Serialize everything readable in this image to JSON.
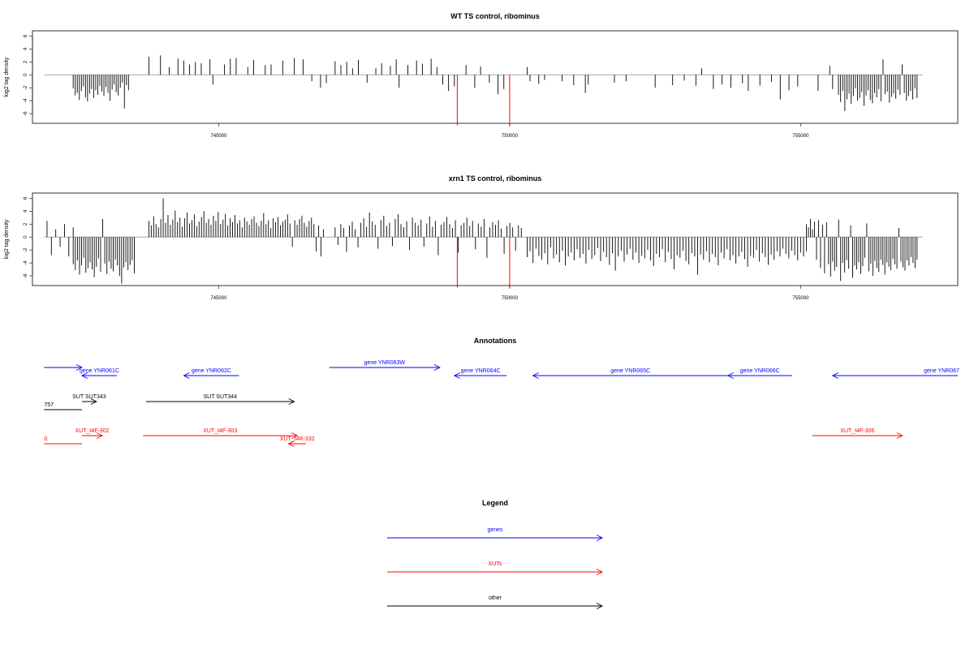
{
  "colors": {
    "genes": "#0000ff",
    "XUTs": "#ff0000",
    "other": "#000000",
    "signal": "#000000",
    "baseline": "#999999",
    "marker": "#ff0000"
  },
  "chart_data": [
    {
      "type": "bar",
      "title": "WT TS control, ribominus",
      "ylabel": "log2 tag density",
      "xlim": [
        741800,
        757700
      ],
      "ylim": [
        -7.5,
        6.8
      ],
      "yticks": [
        -6,
        -4,
        -2,
        0,
        2,
        4,
        6
      ],
      "xticks": [
        745000,
        750000,
        755000
      ],
      "xtick_labels": [
        "745000",
        "750000",
        "755000"
      ],
      "baseline_range": [
        742000,
        757100
      ],
      "markers": [
        {
          "x": 749100,
          "y": -7.8
        },
        {
          "x": 750000,
          "y": -7.8
        }
      ],
      "dense_regions": [
        {
          "from": 742500,
          "to": 743450,
          "values": [
            -2.1,
            -3.2,
            -2.8,
            -3.9,
            -2.5,
            -1.8,
            -3.5,
            -4.1,
            -2.9,
            -2.2,
            -3.6,
            -2.4,
            -3.1,
            -1.7,
            -2.6,
            -3.3,
            -1.9,
            -2.8,
            -4.0,
            -2.3,
            -1.5,
            -2.7,
            -3.2,
            -2.0,
            -1.2,
            -5.2,
            -1.6,
            -2.4
          ]
        },
        {
          "from": 755650,
          "to": 757000,
          "values": [
            -3.1,
            -4.2,
            -2.5,
            -5.6,
            -3.8,
            -2.9,
            -4.5,
            -3.3,
            -2.1,
            -4.0,
            -3.6,
            -2.7,
            -4.8,
            -3.2,
            -2.4,
            -3.9,
            -4.4,
            -2.8,
            -3.5,
            -2.2,
            -4.1,
            2.4,
            -3.0,
            -2.6,
            -4.3,
            -3.4,
            -2.9,
            -3.7,
            -2.3,
            -3.1,
            1.6,
            -2.8,
            -4.0,
            -3.3,
            -2.5,
            -3.8,
            -2.1,
            -3.6
          ]
        }
      ],
      "bars": [
        {
          "x": 743800,
          "y": 2.8
        },
        {
          "x": 744000,
          "y": 3.0
        },
        {
          "x": 744150,
          "y": 1.2
        },
        {
          "x": 744300,
          "y": 2.5
        },
        {
          "x": 744400,
          "y": 2.2
        },
        {
          "x": 744500,
          "y": 1.6
        },
        {
          "x": 744600,
          "y": 2.0
        },
        {
          "x": 744700,
          "y": 1.8
        },
        {
          "x": 744850,
          "y": 2.4
        },
        {
          "x": 744900,
          "y": -1.5
        },
        {
          "x": 745100,
          "y": 1.6
        },
        {
          "x": 745200,
          "y": 2.5
        },
        {
          "x": 745300,
          "y": 2.6
        },
        {
          "x": 745500,
          "y": 1.2
        },
        {
          "x": 745600,
          "y": 2.3
        },
        {
          "x": 745800,
          "y": 1.5
        },
        {
          "x": 745900,
          "y": 1.6
        },
        {
          "x": 746100,
          "y": 2.2
        },
        {
          "x": 746300,
          "y": 2.6
        },
        {
          "x": 746450,
          "y": 2.4
        },
        {
          "x": 746600,
          "y": -1.0
        },
        {
          "x": 746750,
          "y": -2.0
        },
        {
          "x": 746850,
          "y": -1.3
        },
        {
          "x": 747000,
          "y": 2.1
        },
        {
          "x": 747100,
          "y": 1.5
        },
        {
          "x": 747200,
          "y": 2.0
        },
        {
          "x": 747300,
          "y": 1.0
        },
        {
          "x": 747400,
          "y": 2.3
        },
        {
          "x": 747550,
          "y": -1.2
        },
        {
          "x": 747700,
          "y": 1.0
        },
        {
          "x": 747800,
          "y": 1.8
        },
        {
          "x": 747950,
          "y": 1.4
        },
        {
          "x": 748050,
          "y": 2.4
        },
        {
          "x": 748100,
          "y": -2.0
        },
        {
          "x": 748250,
          "y": 1.5
        },
        {
          "x": 748400,
          "y": 2.2
        },
        {
          "x": 748500,
          "y": 1.7
        },
        {
          "x": 748650,
          "y": 2.5
        },
        {
          "x": 748750,
          "y": 1.2
        },
        {
          "x": 748850,
          "y": -1.5
        },
        {
          "x": 748950,
          "y": -2.5
        },
        {
          "x": 749050,
          "y": -1.8
        },
        {
          "x": 749250,
          "y": 1.5
        },
        {
          "x": 749400,
          "y": -2.0
        },
        {
          "x": 749500,
          "y": 1.3
        },
        {
          "x": 749650,
          "y": -1.2
        },
        {
          "x": 749800,
          "y": -3.0
        },
        {
          "x": 749900,
          "y": -2.2
        },
        {
          "x": 750300,
          "y": 1.2
        },
        {
          "x": 750350,
          "y": -1.0
        },
        {
          "x": 750500,
          "y": -1.4
        },
        {
          "x": 750600,
          "y": -0.8
        },
        {
          "x": 750900,
          "y": -1.0
        },
        {
          "x": 751100,
          "y": -1.6
        },
        {
          "x": 751300,
          "y": -2.8
        },
        {
          "x": 751350,
          "y": -1.5
        },
        {
          "x": 751800,
          "y": -1.2
        },
        {
          "x": 752000,
          "y": -1.0
        },
        {
          "x": 752500,
          "y": -2.0
        },
        {
          "x": 752800,
          "y": -1.6
        },
        {
          "x": 753000,
          "y": -0.9
        },
        {
          "x": 753200,
          "y": -1.7
        },
        {
          "x": 753300,
          "y": 1.0
        },
        {
          "x": 753500,
          "y": -2.2
        },
        {
          "x": 753650,
          "y": -1.5
        },
        {
          "x": 753800,
          "y": -2.0
        },
        {
          "x": 754000,
          "y": -1.3
        },
        {
          "x": 754100,
          "y": -2.5
        },
        {
          "x": 754300,
          "y": -1.7
        },
        {
          "x": 754500,
          "y": -1.1
        },
        {
          "x": 754650,
          "y": -3.8
        },
        {
          "x": 754800,
          "y": -2.4
        },
        {
          "x": 754950,
          "y": -1.8
        },
        {
          "x": 755300,
          "y": -2.5
        },
        {
          "x": 755500,
          "y": 1.4
        },
        {
          "x": 755550,
          "y": -2.2
        }
      ]
    },
    {
      "type": "bar",
      "title": "xrn1 TS control, ribominus",
      "ylabel": "log2 tag density",
      "xlim": [
        741800,
        757700
      ],
      "ylim": [
        -7.5,
        6.8
      ],
      "yticks": [
        -6,
        -4,
        -2,
        0,
        2,
        4,
        6
      ],
      "xticks": [
        745000,
        750000,
        755000
      ],
      "xtick_labels": [
        "745000",
        "750000",
        "755000"
      ],
      "baseline_range": [
        742000,
        757100
      ],
      "markers": [
        {
          "x": 749100,
          "y": -7.8
        },
        {
          "x": 750000,
          "y": -7.8
        }
      ],
      "dense_regions": [
        {
          "from": 742050,
          "to": 742500,
          "values": [
            2.5,
            -2.8,
            1.2,
            -1.5,
            2.0,
            -3.0,
            1.5
          ]
        },
        {
          "from": 742500,
          "to": 743550,
          "values": [
            -4.2,
            -5.1,
            -3.6,
            -5.8,
            -4.4,
            -3.2,
            -5.5,
            -4.8,
            -3.9,
            -5.0,
            -6.2,
            -4.6,
            -3.3,
            -5.4,
            2.8,
            -4.1,
            -5.7,
            -3.8,
            -4.9,
            -5.3,
            -3.5,
            -4.4,
            -6.0,
            -7.2,
            -4.7,
            -3.9,
            -5.1,
            -4.3,
            -3.6,
            -5.6
          ]
        },
        {
          "from": 743800,
          "to": 746800,
          "values": [
            2.5,
            1.8,
            3.2,
            2.0,
            1.5,
            2.8,
            6.0,
            2.2,
            3.4,
            1.9,
            2.7,
            4.1,
            2.3,
            3.0,
            1.6,
            2.9,
            3.8,
            2.1,
            2.6,
            3.5,
            1.7,
            2.4,
            3.1,
            4.0,
            2.2,
            2.8,
            1.9,
            3.3,
            2.5,
            3.9,
            2.0,
            2.7,
            3.6,
            1.8,
            2.9,
            2.3,
            3.4,
            2.1,
            2.6,
            1.5,
            3.0,
            2.4,
            1.9,
            2.8,
            3.2,
            2.2,
            1.7,
            2.5,
            3.7,
            2.0,
            2.6,
            1.4,
            2.9,
            2.3,
            3.1,
            1.8,
            2.4,
            2.7,
            3.5,
            2.1,
            -1.5,
            2.6,
            1.9,
            2.8,
            3.3,
            2.2,
            1.6,
            2.5,
            3.0,
            2.0,
            -2.2,
            1.8,
            -3.0,
            1.2
          ]
        },
        {
          "from": 747000,
          "to": 750200,
          "values": [
            1.5,
            -1.2,
            2.0,
            1.4,
            -2.3,
            1.8,
            2.4,
            1.2,
            -1.6,
            2.2,
            2.9,
            1.6,
            3.8,
            2.4,
            1.9,
            -1.8,
            2.6,
            3.3,
            1.7,
            2.2,
            -1.4,
            2.8,
            3.5,
            2.0,
            1.5,
            2.4,
            -2.0,
            3.0,
            2.2,
            1.8,
            2.7,
            -1.5,
            2.1,
            3.2,
            1.6,
            2.5,
            -2.8,
            1.9,
            2.3,
            3.1,
            2.0,
            1.4,
            2.6,
            -2.4,
            1.8,
            2.2,
            3.0,
            1.7,
            2.5,
            -1.9,
            2.1,
            1.6,
            2.8,
            -3.2,
            1.5,
            2.3,
            1.9,
            2.6,
            1.3,
            -2.6,
            1.7,
            2.2,
            1.5,
            -2.1,
            1.8,
            1.4
          ]
        },
        {
          "from": 750300,
          "to": 755100,
          "values": [
            -3.1,
            -2.2,
            -4.0,
            -1.8,
            -2.9,
            -3.5,
            -2.5,
            -4.2,
            -1.6,
            -3.3,
            -2.7,
            -3.9,
            -2.1,
            -4.4,
            -3.0,
            -2.4,
            -3.6,
            -1.9,
            -3.2,
            -2.6,
            -4.1,
            -2.0,
            -3.4,
            -2.8,
            -1.7,
            -3.7,
            -2.3,
            -3.1,
            -4.3,
            -2.5,
            -5.2,
            -3.0,
            -2.1,
            -3.8,
            -2.7,
            -1.8,
            -3.5,
            -2.4,
            -4.0,
            -2.9,
            -3.3,
            -2.0,
            -3.6,
            -4.5,
            -2.6,
            -3.1,
            -1.9,
            -3.9,
            -2.3,
            -3.4,
            -5.0,
            -2.8,
            -3.2,
            -2.1,
            -3.7,
            -4.2,
            -2.5,
            -3.0,
            -5.8,
            -2.7,
            -3.5,
            -2.2,
            -3.9,
            -2.6,
            -3.1,
            -4.4,
            -2.4,
            -3.3,
            -1.9,
            -3.6,
            -2.8,
            -4.1,
            -3.0,
            -2.3,
            -3.4,
            -4.6,
            -2.9,
            -3.2,
            -2.0,
            -3.8,
            -2.5,
            -3.1,
            -4.3,
            -2.7,
            -3.5,
            -2.2,
            -3.0,
            -1.8,
            -2.6,
            -3.3,
            -2.1,
            -2.8,
            -3.6,
            -2.4,
            -3.0,
            -2.2
          ]
        },
        {
          "from": 755100,
          "to": 757000,
          "values": [
            2.0,
            1.5,
            2.8,
            1.2,
            2.4,
            -3.5,
            2.6,
            -4.8,
            1.9,
            -5.6,
            2.3,
            -4.2,
            -6.1,
            -3.8,
            -5.2,
            -4.6,
            2.7,
            -6.8,
            -4.0,
            -5.5,
            -3.6,
            -4.9,
            1.8,
            -6.3,
            -4.4,
            -5.0,
            -3.9,
            -5.7,
            -4.5,
            -3.2,
            2.1,
            -5.3,
            -4.1,
            -6.0,
            -3.7,
            -4.8,
            -5.4,
            -3.5,
            -4.3,
            -5.8,
            -3.9,
            -4.6,
            -5.1,
            -3.4,
            -4.2,
            -4.9,
            1.4,
            -3.8,
            -4.7,
            -5.2,
            -3.6,
            -4.4,
            -3.1,
            -4.0,
            -4.8,
            -3.5
          ]
        }
      ],
      "bars": []
    }
  ],
  "annotations": {
    "title": "Annotations",
    "xlim": [
      741800,
      757700
    ],
    "features": [
      {
        "label": "",
        "start": 742000,
        "end": 742650,
        "strand": "+",
        "row": 0,
        "kind": "genes",
        "label_anchor": "start"
      },
      {
        "label": "gene YNR061C",
        "start": 742650,
        "end": 743250,
        "strand": "-",
        "row": 1,
        "kind": "genes",
        "label_anchor": "middle"
      },
      {
        "label": "gene YNR062C",
        "start": 744400,
        "end": 745350,
        "strand": "-",
        "row": 1,
        "kind": "genes",
        "label_anchor": "middle"
      },
      {
        "label": "gene YNR063W",
        "start": 746900,
        "end": 748800,
        "strand": "+",
        "row": 0,
        "kind": "genes",
        "label_anchor": "middle"
      },
      {
        "label": "gene YNR064C",
        "start": 749050,
        "end": 749950,
        "strand": "-",
        "row": 1,
        "kind": "genes",
        "label_anchor": "middle"
      },
      {
        "label": "gene YNR065C",
        "start": 750400,
        "end": 753750,
        "strand": "-",
        "row": 1,
        "kind": "genes",
        "label_anchor": "middle"
      },
      {
        "label": "gene YNR066C",
        "start": 753750,
        "end": 754850,
        "strand": "-",
        "row": 1,
        "kind": "genes",
        "label_anchor": "middle"
      },
      {
        "label": "gene YNR067",
        "start": 755550,
        "end": 757700,
        "strand": "-",
        "row": 1,
        "kind": "genes",
        "label_anchor": "end"
      },
      {
        "label": "SUT SUT343",
        "start": 742650,
        "end": 742900,
        "strand": "+",
        "row": 2,
        "kind": "other",
        "label_anchor": "middle"
      },
      {
        "label": "757",
        "start": 742000,
        "end": 742650,
        "strand": "",
        "row": 3,
        "kind": "other",
        "label_anchor": "start"
      },
      {
        "label": "SUT SUT344",
        "start": 743750,
        "end": 746300,
        "strand": "+",
        "row": 2,
        "kind": "other",
        "label_anchor": "middle"
      },
      {
        "label": "XUT_t4F-302",
        "start": 742650,
        "end": 743000,
        "strand": "+",
        "row": 4,
        "kind": "XUTs",
        "label_anchor": "middle"
      },
      {
        "label": "0",
        "start": 742000,
        "end": 742650,
        "strand": "",
        "row": 5,
        "kind": "XUTs",
        "label_anchor": "start"
      },
      {
        "label": "XUT_t4F-303",
        "start": 743700,
        "end": 746350,
        "strand": "+",
        "row": 4,
        "kind": "XUTs",
        "label_anchor": "middle"
      },
      {
        "label": "XUT_t4R-332",
        "start": 746200,
        "end": 746500,
        "strand": "-",
        "row": 5,
        "kind": "XUTs",
        "label_anchor": "middle"
      },
      {
        "label": "XUT_t4F-306",
        "start": 755200,
        "end": 756750,
        "strand": "+",
        "row": 4,
        "kind": "XUTs",
        "label_anchor": "middle"
      }
    ]
  },
  "legend": {
    "title": "Legend",
    "items": [
      {
        "label": "genes",
        "kind": "genes"
      },
      {
        "label": "XUTs",
        "kind": "XUTs"
      },
      {
        "label": "other",
        "kind": "other"
      }
    ]
  }
}
